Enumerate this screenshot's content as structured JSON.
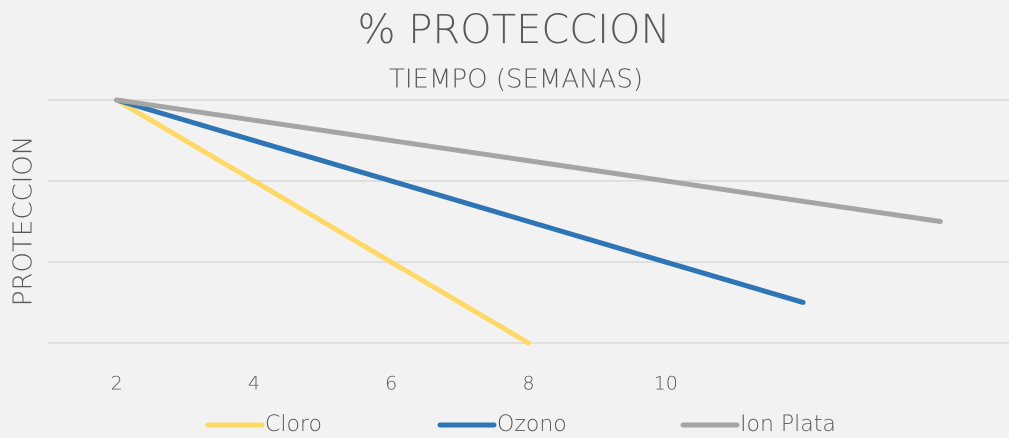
{
  "chart_data": {
    "type": "line",
    "title": "% PROTECCION",
    "x_label": "TIEMPO (SEMANAS)",
    "y_label": "PROTECCION",
    "x": [
      2,
      4,
      6,
      8,
      10,
      12,
      14
    ],
    "series": [
      {
        "name": "Cloro",
        "color": "#ffd966",
        "values": [
          100,
          66.7,
          33.3,
          0,
          null,
          null,
          null
        ]
      },
      {
        "name": "Ozono",
        "color": "#2e75b6",
        "values": [
          100,
          83.3,
          66.7,
          50,
          33.3,
          16.7,
          null
        ]
      },
      {
        "name": "Ion Plata",
        "color": "#a5a5a5",
        "values": [
          100,
          91.7,
          83.3,
          75,
          66.7,
          58.3,
          50
        ]
      }
    ],
    "xlim": [
      1,
      15
    ],
    "xticks": [
      2,
      4,
      6,
      8,
      10
    ],
    "ylim": [
      0,
      100
    ],
    "yticks": [
      0,
      33.3,
      66.7,
      100
    ],
    "grid": true
  }
}
